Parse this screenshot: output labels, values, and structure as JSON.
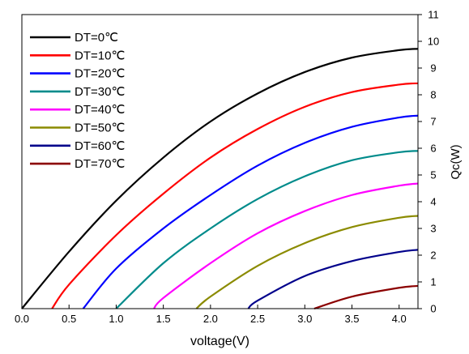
{
  "chart_data": {
    "type": "line",
    "title": "",
    "xlabel": "voltage(V)",
    "ylabel": "Qc(W)",
    "xlim": [
      0.0,
      4.2
    ],
    "ylim": [
      0,
      11
    ],
    "x_ticks": [
      0.0,
      0.5,
      1.0,
      1.5,
      2.0,
      2.5,
      3.0,
      3.5,
      4.0
    ],
    "x_tick_labels": [
      "0.0",
      "0.5",
      "1.0",
      "1.5",
      "2.0",
      "2.5",
      "3.0",
      "3.5",
      "4.0"
    ],
    "y_ticks": [
      0,
      1,
      2,
      3,
      4,
      5,
      6,
      7,
      8,
      9,
      10,
      11
    ],
    "y_tick_labels": [
      "0",
      "1",
      "2",
      "3",
      "4",
      "5",
      "6",
      "7",
      "8",
      "9",
      "10",
      "11"
    ],
    "y_axis_side": "right",
    "grid": false,
    "legend_position": "top-left",
    "series": [
      {
        "name": "DT=0℃",
        "color": "#000000",
        "x": [
          0.0,
          0.5,
          1.0,
          1.5,
          2.0,
          2.5,
          3.0,
          3.5,
          4.0,
          4.2
        ],
        "y": [
          0.0,
          2.13,
          4.04,
          5.65,
          7.0,
          8.05,
          8.85,
          9.39,
          9.67,
          9.72
        ]
      },
      {
        "name": "DT=10℃",
        "color": "#ff0000",
        "x": [
          0.32,
          0.5,
          1.0,
          1.5,
          2.0,
          2.5,
          3.0,
          3.5,
          4.0,
          4.2
        ],
        "y": [
          0.0,
          0.9,
          2.75,
          4.3,
          5.65,
          6.72,
          7.55,
          8.1,
          8.38,
          8.43
        ]
      },
      {
        "name": "DT=20℃",
        "color": "#0000ff",
        "x": [
          0.65,
          1.0,
          1.5,
          2.0,
          2.5,
          3.0,
          3.5,
          4.0,
          4.2
        ],
        "y": [
          0.0,
          1.5,
          3.0,
          4.25,
          5.35,
          6.2,
          6.8,
          7.15,
          7.22
        ]
      },
      {
        "name": "DT=30℃",
        "color": "#008b8b",
        "x": [
          1.0,
          1.5,
          2.0,
          2.5,
          3.0,
          3.5,
          4.0,
          4.2
        ],
        "y": [
          0.0,
          1.7,
          3.0,
          4.1,
          4.95,
          5.55,
          5.85,
          5.9
        ]
      },
      {
        "name": "DT=40℃",
        "color": "#ff00ff",
        "x": [
          1.4,
          1.5,
          2.0,
          2.5,
          3.0,
          3.5,
          4.0,
          4.2
        ],
        "y": [
          0.0,
          0.4,
          1.7,
          2.82,
          3.65,
          4.25,
          4.6,
          4.68
        ]
      },
      {
        "name": "DT=50℃",
        "color": "#8b8b00",
        "x": [
          1.85,
          2.0,
          2.5,
          3.0,
          3.5,
          4.0,
          4.2
        ],
        "y": [
          0.0,
          0.45,
          1.6,
          2.45,
          3.05,
          3.4,
          3.47
        ]
      },
      {
        "name": "DT=60℃",
        "color": "#00008b",
        "x": [
          2.4,
          2.5,
          3.0,
          3.5,
          4.0,
          4.2
        ],
        "y": [
          0.0,
          0.3,
          1.22,
          1.78,
          2.12,
          2.2
        ]
      },
      {
        "name": "DT=70℃",
        "color": "#8b0000",
        "x": [
          3.1,
          3.5,
          4.0,
          4.2
        ],
        "y": [
          0.0,
          0.45,
          0.78,
          0.85
        ]
      }
    ]
  }
}
